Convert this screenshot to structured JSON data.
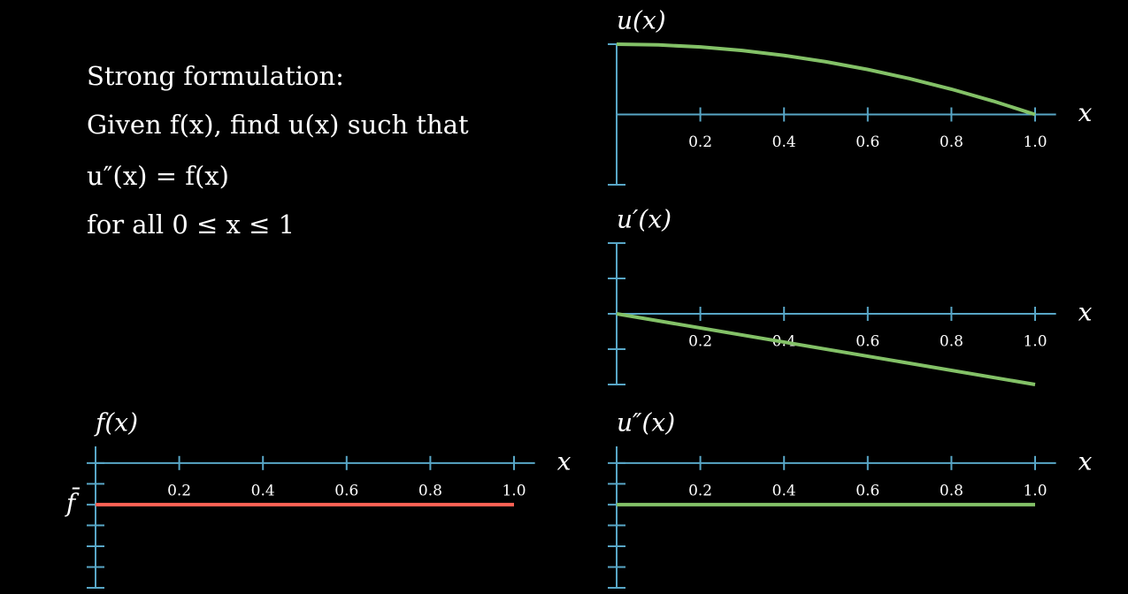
{
  "text_lines": [
    "Strong formulation:",
    "Given f(x), find u(x) such that",
    "u″(x) = f(x)",
    "for all 0 ≤ x ≤ 1"
  ],
  "chart_data": [
    {
      "type": "line",
      "title": "u(x)",
      "x_label": "x",
      "color": "#83c167",
      "x": [
        0,
        0.1,
        0.2,
        0.3,
        0.4,
        0.5,
        0.6,
        0.7,
        0.8,
        0.9,
        1
      ],
      "values": [
        1,
        0.99,
        0.96,
        0.91,
        0.84,
        0.75,
        0.64,
        0.51,
        0.36,
        0.19,
        0
      ],
      "xlim": [
        0,
        1.05
      ],
      "ylim": [
        -1,
        1
      ],
      "xticks": [
        0.2,
        0.4,
        0.6,
        0.8,
        {
          "value": 1,
          "label": "1.0"
        }
      ],
      "yticks": [
        -1,
        1
      ]
    },
    {
      "type": "line",
      "title": "u′(x)",
      "x_label": "x",
      "color": "#83c167",
      "x": [
        0,
        1
      ],
      "values": [
        0,
        -2
      ],
      "xlim": [
        0,
        1.05
      ],
      "ylim": [
        -2,
        2
      ],
      "xticks": [
        0.2,
        0.4,
        0.6,
        0.8,
        {
          "value": 1,
          "label": "1.0"
        }
      ],
      "yticks": [
        -2,
        -1,
        0,
        1,
        2
      ]
    },
    {
      "type": "line",
      "title": "f(x)",
      "x_label": "x",
      "color": "#fc6255",
      "x": [
        0,
        1
      ],
      "values": [
        -2,
        -2
      ],
      "xlim": [
        0,
        1.05
      ],
      "ylim": [
        -6,
        0.8
      ],
      "xticks": [
        0.2,
        0.4,
        0.6,
        0.8,
        {
          "value": 1,
          "label": "1.0"
        }
      ],
      "yticks": [
        -6,
        -5,
        -4,
        -3,
        {
          "value": -2,
          "label": "f̄"
        },
        -1,
        0
      ]
    },
    {
      "type": "line",
      "title": "u″(x)",
      "x_label": "x",
      "color": "#83c167",
      "x": [
        0,
        1
      ],
      "values": [
        -2,
        -2
      ],
      "xlim": [
        0,
        1.05
      ],
      "ylim": [
        -6,
        0.8
      ],
      "xticks": [
        0.2,
        0.4,
        0.6,
        0.8,
        {
          "value": 1,
          "label": "1.0"
        }
      ],
      "yticks": [
        -6,
        -5,
        -4,
        -3,
        -2,
        -1,
        0
      ]
    }
  ]
}
